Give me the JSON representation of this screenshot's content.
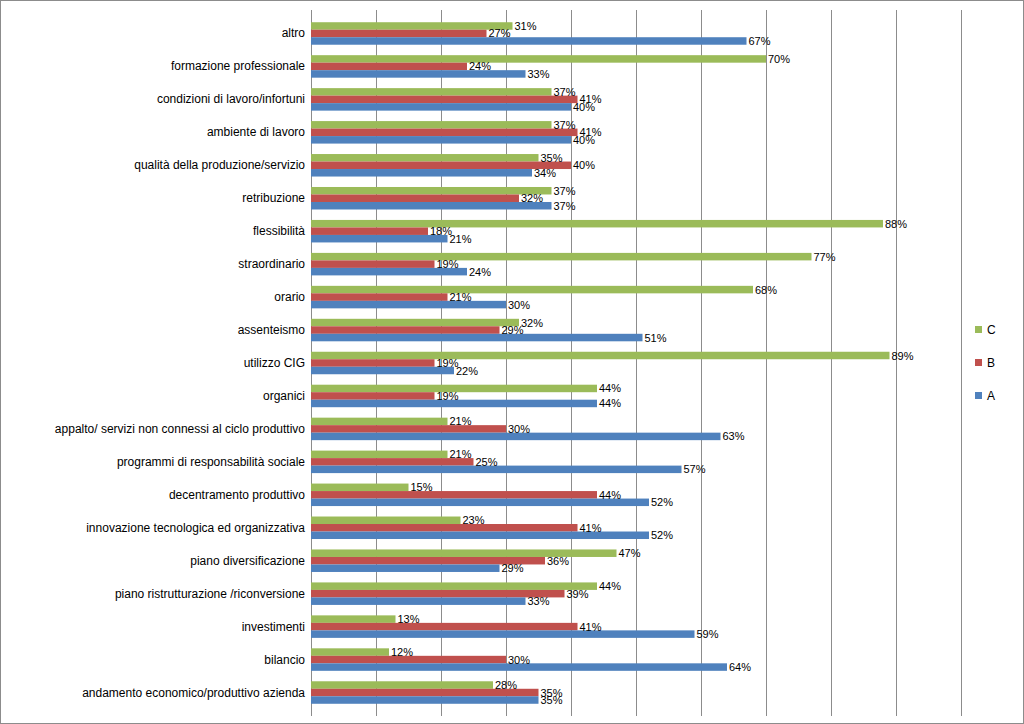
{
  "chart_data": {
    "type": "bar",
    "orientation": "horizontal",
    "categories": [
      "altro",
      "formazione professionale",
      "condizioni di lavoro/infortuni",
      "ambiente di lavoro",
      "qualità della produzione/servizio",
      "retribuzione",
      "flessibilità",
      "straordinario",
      "orario",
      "assenteismo",
      "utilizzo CIG",
      "organici",
      "appalto/ servizi non connessi al ciclo produttivo",
      "programmi di responsabilità sociale",
      "decentramento produttivo",
      "innovazione tecnologica ed organizzativa",
      "piano diversificazione",
      "piano ristrutturazione /riconversione",
      "investimenti",
      "bilancio",
      "andamento economico/produttivo azienda"
    ],
    "series": [
      {
        "name": "C",
        "color": "#9bbb59",
        "values": [
          31,
          70,
          37,
          37,
          35,
          37,
          88,
          77,
          68,
          32,
          89,
          44,
          21,
          21,
          15,
          23,
          47,
          44,
          13,
          12,
          28
        ],
        "value_labels": [
          "31%",
          "70%",
          "37%",
          "37%",
          "35%",
          "37%",
          "88%",
          "77%",
          "68%",
          "32%",
          "89%",
          "44%",
          "21%",
          "21%",
          "15%",
          "23%",
          "47%",
          "44%",
          "13%",
          "12%",
          "28%"
        ]
      },
      {
        "name": "B",
        "color": "#c0504d",
        "values": [
          27,
          24,
          41,
          41,
          40,
          32,
          18,
          19,
          21,
          29,
          19,
          19,
          30,
          25,
          44,
          41,
          36,
          39,
          41,
          30,
          35
        ],
        "value_labels": [
          "27%",
          "24%",
          "41%",
          "41%",
          "40%",
          "32%",
          "18%",
          "19%",
          "21%",
          "29%",
          "19%",
          "19%",
          "30%",
          "25%",
          "44%",
          "41%",
          "36%",
          "39%",
          "41%",
          "30%",
          "35%"
        ]
      },
      {
        "name": "A",
        "color": "#4f81bd",
        "values": [
          67,
          33,
          40,
          40,
          34,
          37,
          21,
          24,
          30,
          51,
          22,
          44,
          63,
          57,
          52,
          52,
          29,
          33,
          59,
          64,
          35
        ],
        "value_labels": [
          "67%",
          "33%",
          "40%",
          "40%",
          "34%",
          "37%",
          "21%",
          "24%",
          "30%",
          "51%",
          "22%",
          "44%",
          "63%",
          "57%",
          "52%",
          "52%",
          "29%",
          "33%",
          "59%",
          "64%",
          "35%"
        ]
      }
    ],
    "xlim": [
      0,
      100
    ],
    "xticks": [
      0,
      10,
      20,
      30,
      40,
      50,
      60,
      70,
      80,
      90,
      100
    ],
    "grid": true,
    "legend": "right",
    "data_labels": true,
    "tick_labels": "y"
  }
}
